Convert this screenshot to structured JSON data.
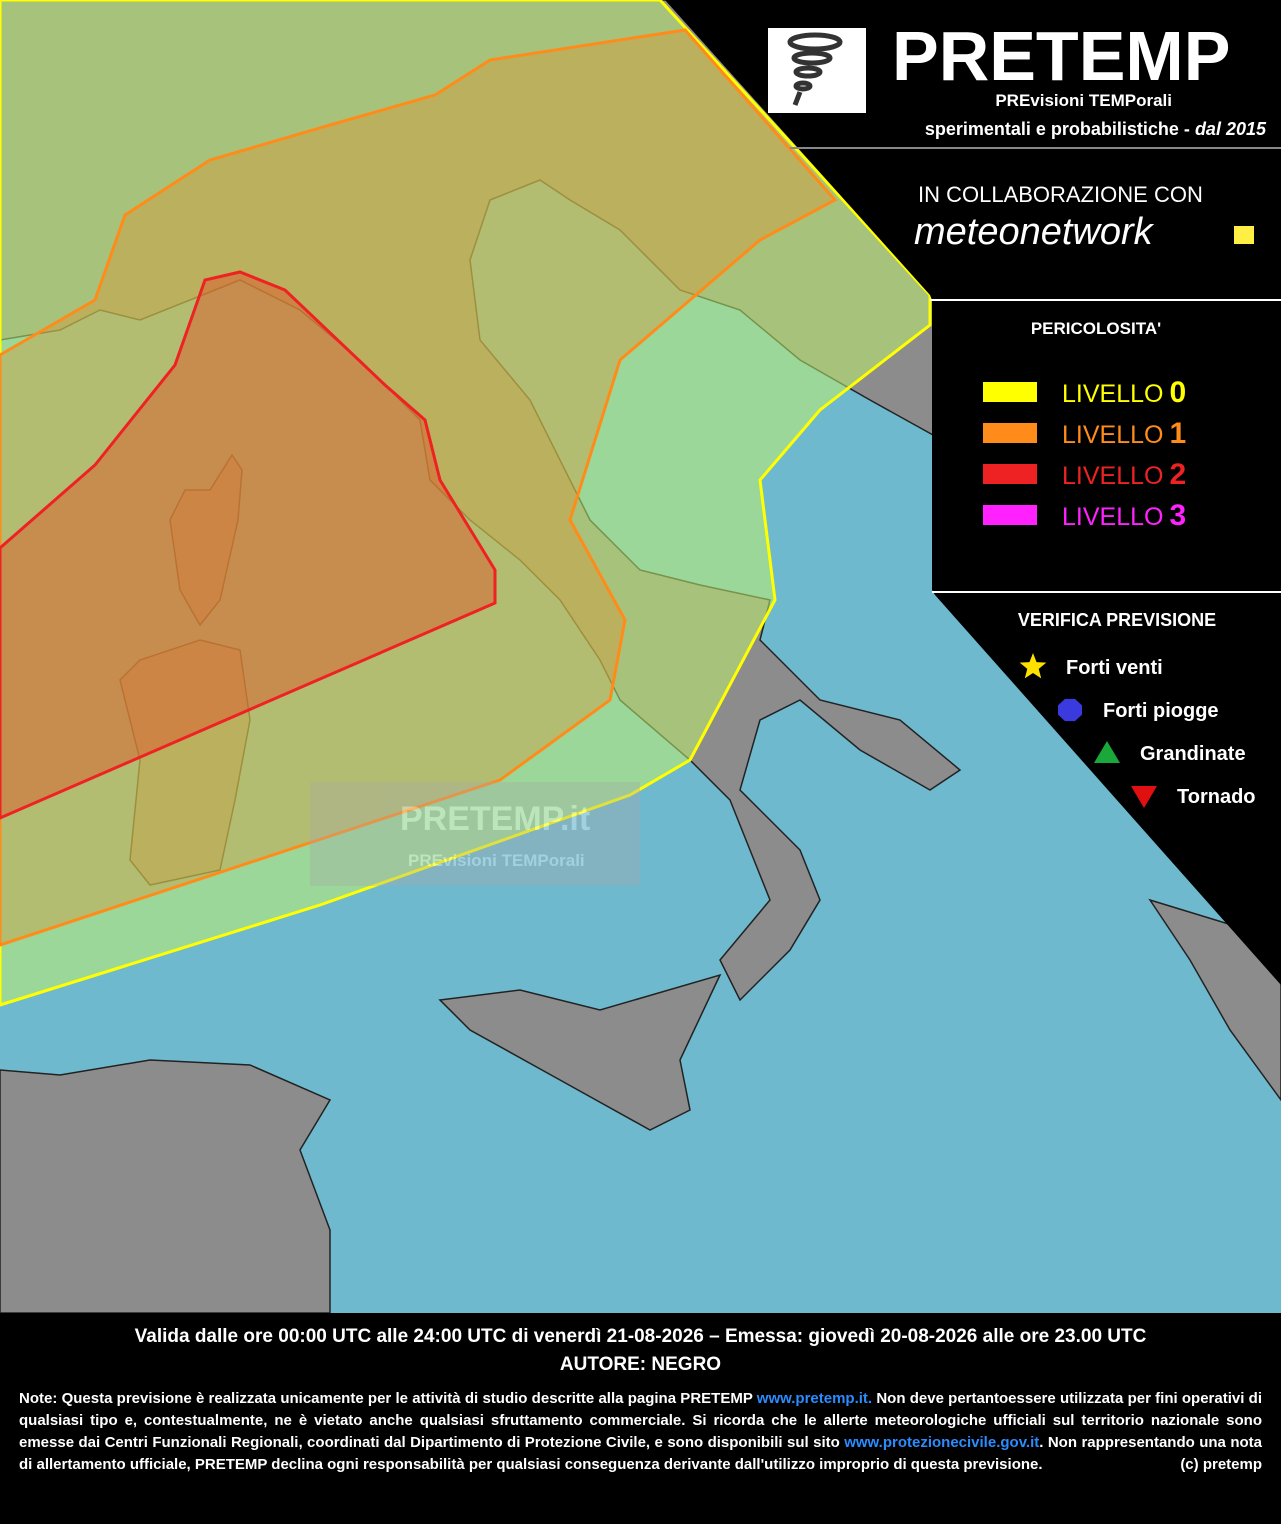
{
  "header": {
    "title": "PRETEMP",
    "subtitle": "PREvisioni TEMPorali",
    "tagline": "sperimentali e probabilistiche - ",
    "since": "dal 2015",
    "collab": "IN COLLABORAZIONE CON",
    "partner": "meteonetwork"
  },
  "legend": {
    "title": "PERICOLOSITA'",
    "levels": [
      {
        "label": "LIVELLO",
        "num": "0",
        "color": "#ffff00"
      },
      {
        "label": "LIVELLO",
        "num": "1",
        "color": "#ff8c1a"
      },
      {
        "label": "LIVELLO",
        "num": "2",
        "color": "#ee2222"
      },
      {
        "label": "LIVELLO",
        "num": "3",
        "color": "#ff22ff"
      }
    ]
  },
  "verification": {
    "title": "VERIFICA PREVISIONE",
    "items": [
      {
        "label": "Forti venti",
        "color": "#ffe100"
      },
      {
        "label": "Forti piogge",
        "color": "#3a3adf"
      },
      {
        "label": "Grandinate",
        "color": "#1aa83a"
      },
      {
        "label": "Tornado",
        "color": "#e01010"
      }
    ]
  },
  "watermark": {
    "title": "PRETEMP.it",
    "subtitle": "PREvisioni TEMPorali"
  },
  "footer": {
    "validity": "Valida dalle ore 00:00 UTC alle 24:00 UTC di venerdì 21-08-2026 – Emessa: giovedì 20-08-2026 alle ore 23.00 UTC",
    "author": "AUTORE: NEGRO",
    "notes": [
      "Note: Questa previsione è realizzata unicamente per le attività di studio descritte alla pagina PRETEMP ",
      "www.pretemp.it.",
      " Non deve pertantoessere utilizzata per fini operativi di qualsiasi tipo e, contestualmente, ne è vietato anche qualsiasi sfruttamento commerciale. Si ricorda che le allerte meteorologiche ufficiali sul territorio nazionale sono emesse dai Centri Funzionali Regionali, coordinati dal Dipartimento di Protezione Civile, e sono disponibili sul sito ",
      "www.protezionecivile.gov.it",
      ". Non rappresentando una nota di allertamento ufficiale, PRETEMP declina ogni responsabilità per qualsiasi conseguenza derivante dall'utilizzo improprio di questa previsione."
    ],
    "copyright": "(c) pretemp"
  }
}
